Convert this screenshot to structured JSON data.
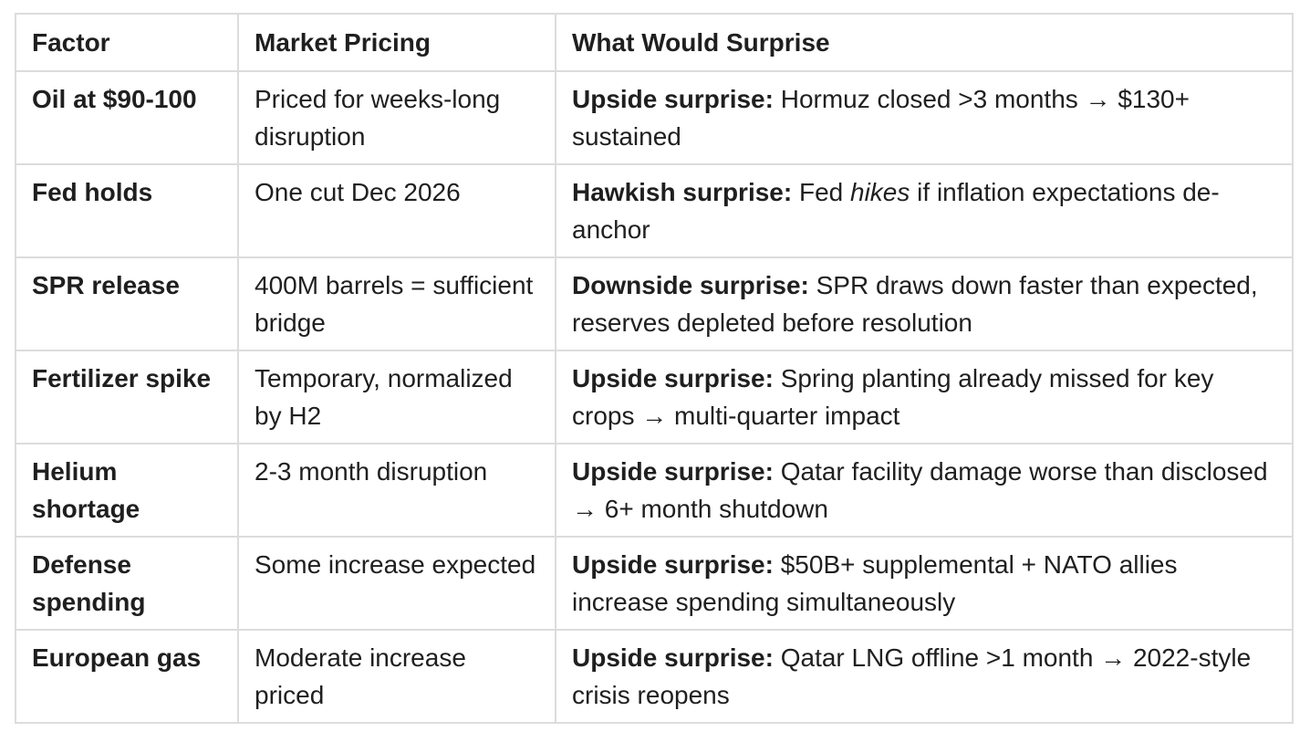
{
  "table": {
    "headers": [
      "Factor",
      "Market Pricing",
      "What Would Surprise"
    ],
    "rows": [
      {
        "factor": "Oil at $90-100",
        "pricing": "Priced for weeks-long disruption",
        "surprise_label": "Upside surprise:",
        "surprise_pre": " Hormuz closed >3 months → $130+ sustained",
        "surprise_em": "",
        "surprise_post": ""
      },
      {
        "factor": "Fed holds",
        "pricing": "One cut Dec 2026",
        "surprise_label": "Hawkish surprise:",
        "surprise_pre": " Fed ",
        "surprise_em": "hikes",
        "surprise_post": " if inflation expectations de-anchor"
      },
      {
        "factor": "SPR release",
        "pricing": "400M barrels = sufficient bridge",
        "surprise_label": "Downside surprise:",
        "surprise_pre": " SPR draws down faster than expected, reserves depleted before resolution",
        "surprise_em": "",
        "surprise_post": ""
      },
      {
        "factor": "Fertilizer spike",
        "pricing": "Temporary, normalized by H2",
        "surprise_label": "Upside surprise:",
        "surprise_pre": " Spring planting already missed for key crops → multi-quarter impact",
        "surprise_em": "",
        "surprise_post": ""
      },
      {
        "factor": "Helium shortage",
        "pricing": "2-3 month disruption",
        "surprise_label": "Upside surprise:",
        "surprise_pre": " Qatar facility damage worse than disclosed → 6+ month shutdown",
        "surprise_em": "",
        "surprise_post": ""
      },
      {
        "factor": "Defense spending",
        "pricing": "Some increase expected",
        "surprise_label": "Upside surprise:",
        "surprise_pre": " $50B+ supplemental + NATO allies increase spending simultaneously",
        "surprise_em": "",
        "surprise_post": ""
      },
      {
        "factor": "European gas",
        "pricing": "Moderate increase priced",
        "surprise_label": "Upside surprise:",
        "surprise_pre": " Qatar LNG offline >1 month → 2022-style crisis reopens",
        "surprise_em": "",
        "surprise_post": ""
      }
    ]
  }
}
